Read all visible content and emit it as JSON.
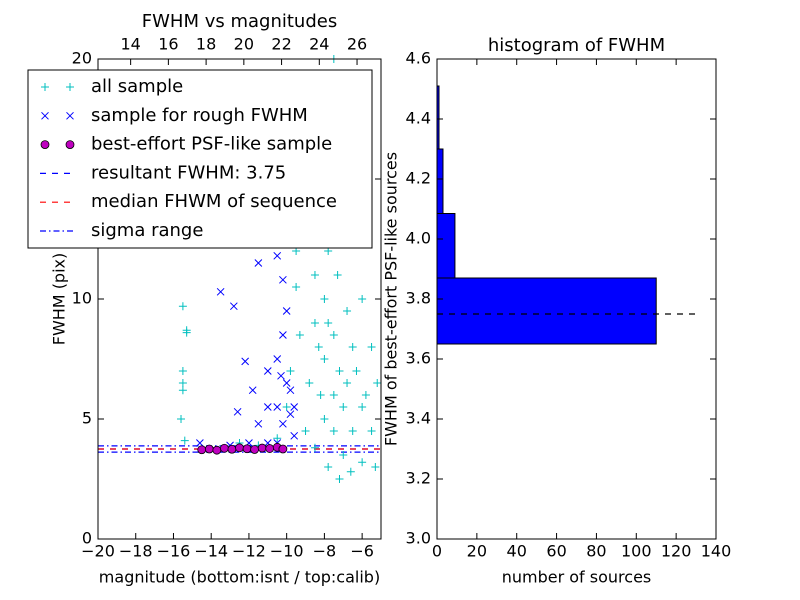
{
  "chart_data": [
    {
      "type": "scatter",
      "title": "FWHM vs magnitudes",
      "xlabel": "magnitude (bottom:isnt / top:calib)",
      "ylabel": "FWHM (pix)",
      "xlim": [
        -20,
        -5
      ],
      "ylim": [
        0,
        20
      ],
      "xticks": [
        {
          "value": -20,
          "label": "−20"
        },
        {
          "value": -18,
          "label": "−18"
        },
        {
          "value": -16,
          "label": "−16"
        },
        {
          "value": -14,
          "label": "−14"
        },
        {
          "value": -12,
          "label": "−12"
        },
        {
          "value": -10,
          "label": "−10"
        },
        {
          "value": -8,
          "label": "−8"
        },
        {
          "value": -6,
          "label": "−6"
        }
      ],
      "yticks": [
        0,
        5,
        10,
        15,
        20
      ],
      "x2lim": [
        12.27,
        27.27
      ],
      "x2ticks": [
        14,
        16,
        18,
        20,
        22,
        24,
        26
      ],
      "legend": "upper left",
      "series": [
        {
          "name": "all sample",
          "color": "#00bfbf",
          "marker": "plus",
          "x": [
            -15.5,
            -15.3,
            -15.3,
            -15.5,
            -15.5,
            -15.5,
            -15.6,
            -15.4,
            -12.5,
            -11.5,
            -10.5,
            -10,
            -9.8,
            -9.5,
            -9.5,
            -9.2,
            -9,
            -8.8,
            -8.5,
            -8.5,
            -8.3,
            -8.2,
            -8,
            -8,
            -8,
            -7.8,
            -7.8,
            -7.5,
            -7.5,
            -7.5,
            -7.5,
            -7.5,
            -7.3,
            -7.2,
            -7,
            -7,
            -7,
            -6.8,
            -6.8,
            -6.5,
            -6.5,
            -6.5,
            -6.3,
            -6,
            -6,
            -6,
            -5.8,
            -5.5,
            -5.5,
            -5.3,
            -5.2,
            -8.8,
            -9,
            -8.5,
            -7.8,
            -7.2,
            -6.6,
            -9.3,
            -8.7,
            -7.6
          ],
          "values": [
            9.7,
            8.7,
            8.6,
            7.0,
            6.5,
            6.2,
            5.0,
            4.1,
            4.0,
            3.9,
            4.2,
            5.5,
            7,
            10.5,
            12,
            13,
            15,
            16,
            11,
            9,
            8,
            6,
            10,
            7.5,
            5,
            12,
            9,
            20,
            17,
            8.5,
            6,
            4.5,
            11,
            7,
            19,
            5.5,
            3.5,
            9.5,
            6.5,
            13,
            8,
            4.5,
            7,
            10,
            5.5,
            3.2,
            6,
            8,
            4.5,
            3,
            6.5,
            6.5,
            4.5,
            3.8,
            3.0,
            2.5,
            2.8,
            8.5,
            12.5,
            14
          ]
        },
        {
          "name": "sample for rough FWHM",
          "color": "#0000ff",
          "marker": "x",
          "x": [
            -13.5,
            -12.8,
            -11.5,
            -10.8,
            -10.5,
            -10.2,
            -10,
            -10.2,
            -10.5,
            -11,
            -11.8,
            -12.2,
            -11.5,
            -11,
            -10.5,
            -10.2,
            -9.8,
            -9.6,
            -10,
            -10.3,
            -9.8,
            -14.6,
            -13,
            -12,
            -11,
            -10.5,
            -12.6,
            -9.6
          ],
          "values": [
            10.3,
            9.7,
            11.5,
            12.5,
            11.8,
            10.8,
            9.5,
            8.5,
            7.5,
            7,
            6.2,
            7.4,
            4.8,
            5.5,
            5.5,
            4.8,
            5.2,
            5.5,
            6.5,
            6.8,
            6.2,
            4.0,
            3.9,
            4.0,
            4.0,
            4.0,
            5.3,
            4.3
          ]
        },
        {
          "name": "best-effort PSF-like sample",
          "color": "#bf00bf",
          "marker": "circle",
          "x": [
            -14.5,
            -14.1,
            -13.7,
            -13.3,
            -12.9,
            -12.5,
            -12.1,
            -11.7,
            -11.3,
            -10.9,
            -10.5,
            -10.2
          ],
          "values": [
            3.72,
            3.75,
            3.7,
            3.78,
            3.74,
            3.8,
            3.76,
            3.73,
            3.79,
            3.77,
            3.82,
            3.75
          ]
        }
      ],
      "lines": [
        {
          "name": "resultant FWHM: 3.75",
          "color": "#0000ff",
          "style": "dashed",
          "values": [
            3.75
          ]
        },
        {
          "name": "median FHWM of sequence",
          "color": "#ff0000",
          "style": "dashed",
          "values": [
            3.75
          ]
        },
        {
          "name": "sigma range",
          "color": "#0000ff",
          "style": "dashdot",
          "values": [
            3.62,
            3.88
          ]
        }
      ]
    },
    {
      "type": "histogram",
      "orientation": "horizontal",
      "title": "histogram of FWHM",
      "xlabel": "number of sources",
      "ylabel": "FWHM of best-effort PSF-like sources",
      "xlim": [
        0,
        140
      ],
      "ylim": [
        3.0,
        4.6
      ],
      "xticks": [
        0,
        20,
        40,
        60,
        80,
        100,
        120,
        140
      ],
      "yticks": [
        {
          "value": 3.0,
          "label": "3.0"
        },
        3.2,
        3.4,
        3.6,
        3.8,
        {
          "value": 4.0,
          "label": "4.0"
        },
        4.2,
        4.4,
        4.6
      ],
      "bins": [
        3.65,
        3.87,
        4.085,
        4.3,
        4.51
      ],
      "counts": [
        110,
        9,
        3,
        1
      ],
      "color": "#0000ff",
      "lines": [
        {
          "color": "#000000",
          "style": "dashed",
          "values": [
            3.75
          ],
          "span": [
            0,
            130
          ]
        }
      ]
    }
  ]
}
